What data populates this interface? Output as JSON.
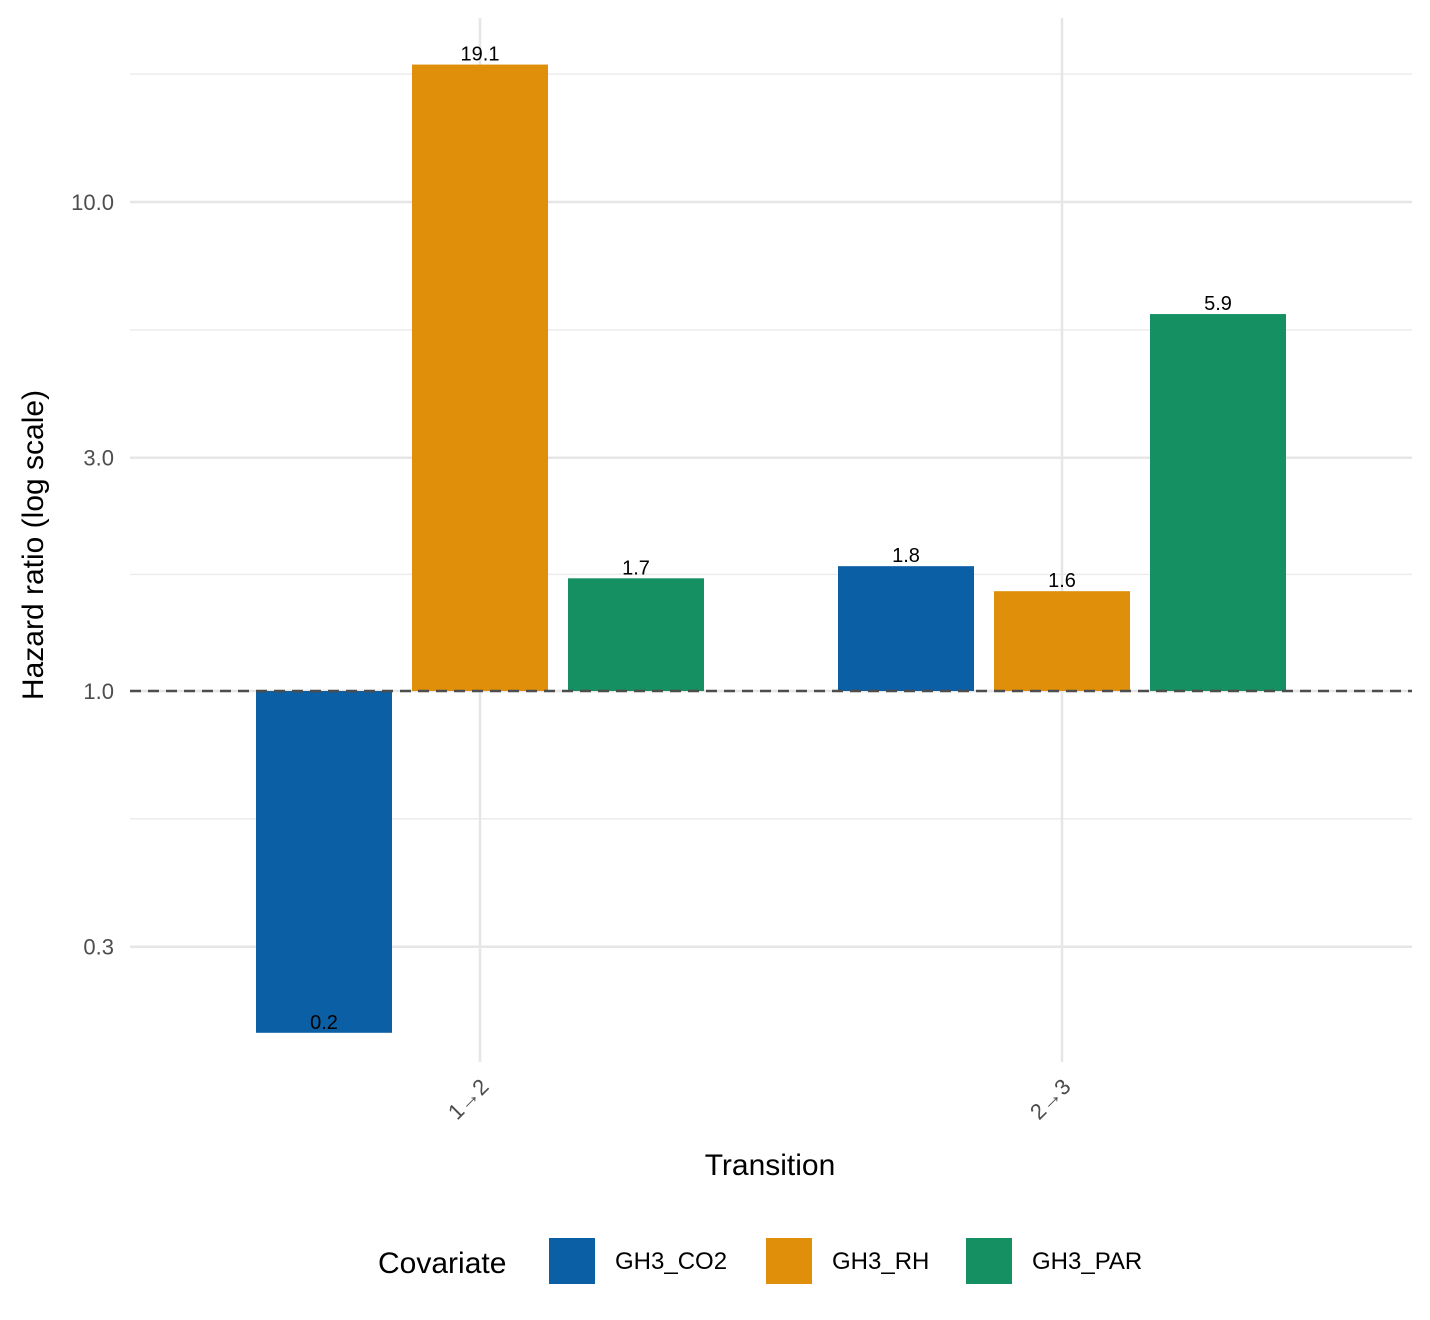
{
  "chart_data": {
    "type": "bar",
    "xlabel": "Transition",
    "ylabel": "Hazard ratio (log scale)",
    "y_scale": "log",
    "ylim": [
      0.2,
      28
    ],
    "y_ticks": [
      {
        "value": 0.3,
        "label": "0.3"
      },
      {
        "value": 1.0,
        "label": "1.0"
      },
      {
        "value": 3.0,
        "label": "3.0"
      },
      {
        "value": 10.0,
        "label": "10.0"
      }
    ],
    "reference_line": 1.0,
    "categories": [
      "1→2",
      "2→3"
    ],
    "series": [
      {
        "name": "GH3_CO2",
        "color": "#0b5fa5",
        "values": [
          0.2,
          1.8
        ],
        "labels": [
          "0.2",
          "1.8"
        ]
      },
      {
        "name": "GH3_RH",
        "color": "#e08f0a",
        "values": [
          19.1,
          1.6
        ],
        "labels": [
          "19.1",
          "1.6"
        ]
      },
      {
        "name": "GH3_PAR",
        "color": "#159062",
        "values": [
          1.7,
          5.9
        ],
        "labels": [
          "1.7",
          "5.9"
        ]
      }
    ],
    "legend": {
      "title": "Covariate",
      "position": "bottom"
    },
    "grid": true
  }
}
